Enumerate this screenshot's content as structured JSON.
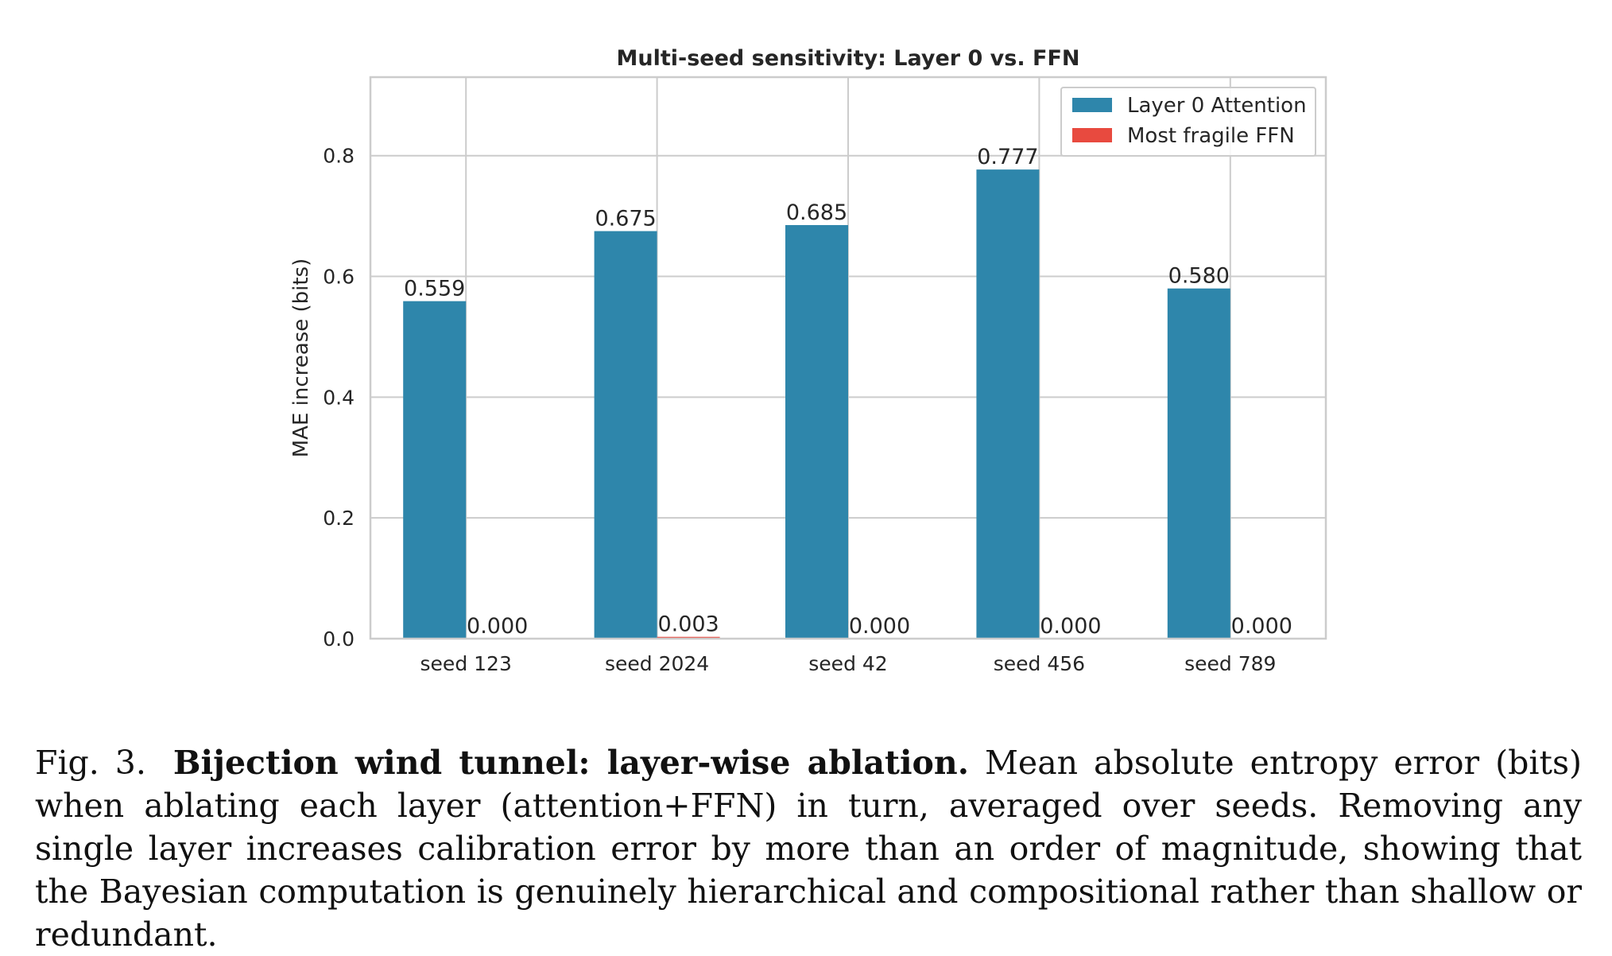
{
  "chart_data": {
    "type": "bar",
    "title": "Multi-seed sensitivity: Layer 0 vs. FFN",
    "xlabel": "",
    "ylabel": "MAE increase (bits)",
    "ylim": [
      0,
      0.93
    ],
    "yticks": [
      0.0,
      0.2,
      0.4,
      0.6,
      0.8
    ],
    "ytick_labels": [
      "0.0",
      "0.2",
      "0.4",
      "0.6",
      "0.8"
    ],
    "grid": true,
    "legend_position": "top-right",
    "categories": [
      "seed 123",
      "seed 2024",
      "seed 42",
      "seed 456",
      "seed 789"
    ],
    "series": [
      {
        "name": "Layer 0 Attention",
        "color": "#2e86ab",
        "values": [
          0.559,
          0.675,
          0.685,
          0.777,
          0.58
        ],
        "labels": [
          "0.559",
          "0.675",
          "0.685",
          "0.777",
          "0.580"
        ]
      },
      {
        "name": "Most fragile FFN",
        "color": "#e84a3f",
        "values": [
          0.0,
          0.003,
          0.0,
          0.0,
          0.0
        ],
        "labels": [
          "0.000",
          "0.003",
          "0.000",
          "0.000",
          "0.000"
        ]
      }
    ]
  },
  "caption": {
    "number": "Fig. 3.",
    "title": "Bijection wind tunnel: layer-wise ablation.",
    "body": "Mean absolute entropy error (bits) when ablating each layer (attention+FFN) in turn, averaged over seeds. Removing any single layer increases calibration error by more than an order of magnitude, showing that the Bayesian computation is genuinely hierarchical and compositional rather than shallow or redundant."
  }
}
